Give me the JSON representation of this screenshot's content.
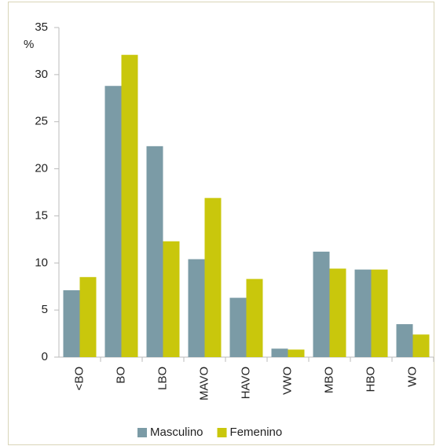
{
  "chart_data": {
    "type": "bar",
    "y_label": "%",
    "categories": [
      "<BO",
      "BO",
      "LBO",
      "MAVO",
      "HAVO",
      "VWO",
      "MBO",
      "HBO",
      "WO"
    ],
    "series": [
      {
        "name": "Masculino",
        "color": "#7b9ba6",
        "values": [
          7.1,
          28.8,
          22.4,
          10.4,
          6.3,
          0.9,
          11.2,
          9.3,
          3.5
        ]
      },
      {
        "name": "Femenino",
        "color": "#c9c70c",
        "values": [
          8.5,
          32.1,
          12.3,
          16.9,
          8.3,
          0.8,
          9.4,
          9.3,
          2.4
        ]
      }
    ],
    "ylim": [
      0,
      35
    ],
    "yticks": [
      0,
      5,
      10,
      15,
      20,
      25,
      30,
      35
    ],
    "grid": false,
    "legend": "bottom"
  }
}
